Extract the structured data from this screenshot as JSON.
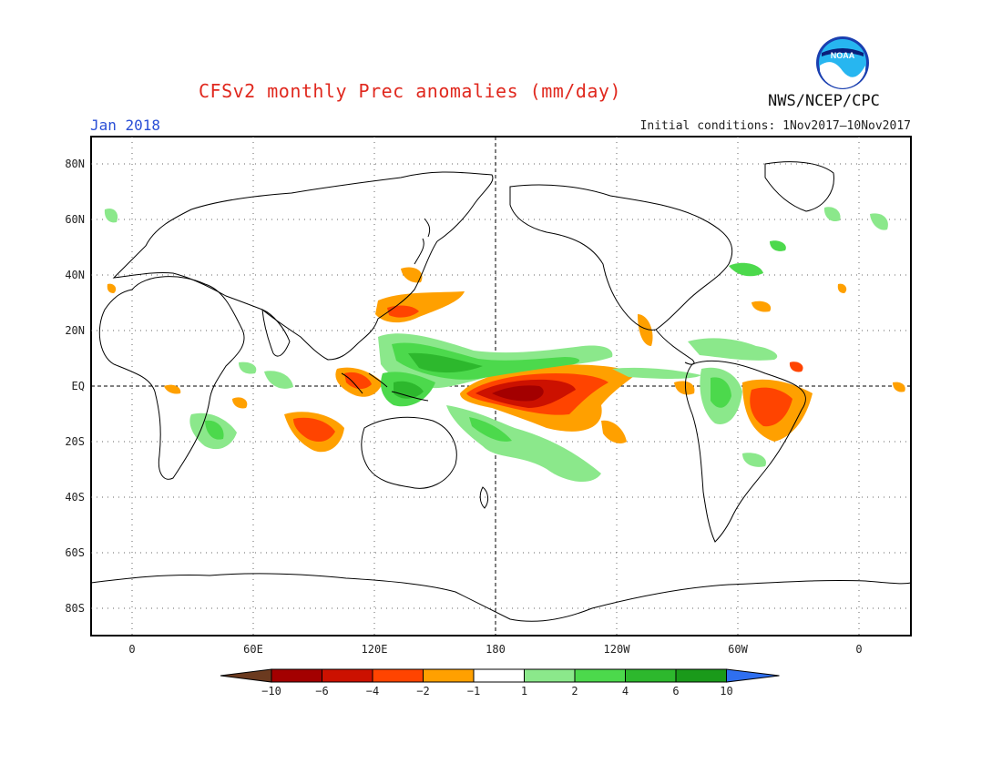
{
  "header": {
    "title": "CFSv2 monthly Prec anomalies (mm/day)",
    "month": "Jan 2018",
    "initial_conditions": "Initial conditions: 1Nov2017–10Nov2017",
    "agency": "NWS/NCEP/CPC",
    "logo": {
      "icon": "noaa-logo-icon",
      "text": "NOAA"
    }
  },
  "map": {
    "lat_labels": [
      "80N",
      "60N",
      "40N",
      "20N",
      "EQ",
      "20S",
      "40S",
      "60S",
      "80S"
    ],
    "lon_labels": [
      "0",
      "60E",
      "120E",
      "180",
      "120W",
      "60W",
      "0"
    ]
  },
  "colorbar": {
    "labels": [
      "−10",
      "−6",
      "−4",
      "−2",
      "−1",
      "1",
      "2",
      "4",
      "6",
      "10"
    ],
    "colors": [
      "#6b3a1f",
      "#a30000",
      "#cc1100",
      "#ff4400",
      "#ffa000",
      "#ffffff",
      "#8be88b",
      "#4cd94c",
      "#2db82d",
      "#1a9a1a",
      "#2f6ff0"
    ]
  }
}
